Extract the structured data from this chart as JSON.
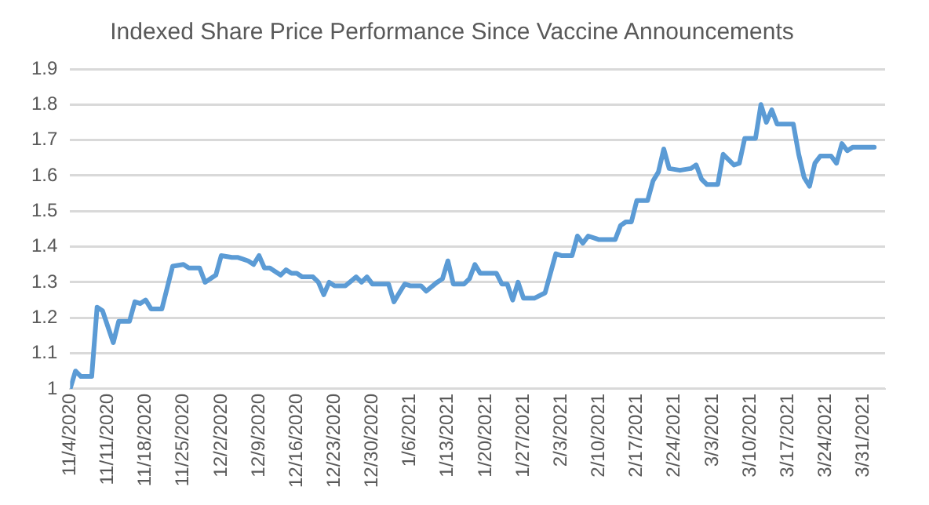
{
  "chart_data": {
    "type": "line",
    "title": "Indexed Share Price Performance Since Vaccine Announcements",
    "x": [
      "2020-11-04",
      "2020-11-05",
      "2020-11-06",
      "2020-11-08",
      "2020-11-09",
      "2020-11-10",
      "2020-11-12",
      "2020-11-13",
      "2020-11-15",
      "2020-11-16",
      "2020-11-17",
      "2020-11-18",
      "2020-11-19",
      "2020-11-21",
      "2020-11-23",
      "2020-11-25",
      "2020-11-26",
      "2020-11-28",
      "2020-11-29",
      "2020-12-01",
      "2020-12-02",
      "2020-12-04",
      "2020-12-05",
      "2020-12-06",
      "2020-12-07",
      "2020-12-08",
      "2020-12-09",
      "2020-12-10",
      "2020-12-11",
      "2020-12-13",
      "2020-12-14",
      "2020-12-15",
      "2020-12-16",
      "2020-12-17",
      "2020-12-19",
      "2020-12-20",
      "2020-12-21",
      "2020-12-22",
      "2020-12-23",
      "2020-12-25",
      "2020-12-27",
      "2020-12-28",
      "2020-12-29",
      "2020-12-30",
      "2021-01-02",
      "2021-01-03",
      "2021-01-05",
      "2021-01-06",
      "2021-01-08",
      "2021-01-09",
      "2021-01-11",
      "2021-01-12",
      "2021-01-13",
      "2021-01-14",
      "2021-01-16",
      "2021-01-17",
      "2021-01-18",
      "2021-01-19",
      "2021-01-22",
      "2021-01-23",
      "2021-01-24",
      "2021-01-25",
      "2021-01-26",
      "2021-01-27",
      "2021-01-29",
      "2021-01-31",
      "2021-02-02",
      "2021-02-03",
      "2021-02-05",
      "2021-02-06",
      "2021-02-07",
      "2021-02-08",
      "2021-02-10",
      "2021-02-13",
      "2021-02-14",
      "2021-02-15",
      "2021-02-16",
      "2021-02-17",
      "2021-02-19",
      "2021-02-20",
      "2021-02-21",
      "2021-02-22",
      "2021-02-23",
      "2021-02-25",
      "2021-02-27",
      "2021-02-28",
      "2021-03-01",
      "2021-03-02",
      "2021-03-04",
      "2021-03-05",
      "2021-03-06",
      "2021-03-07",
      "2021-03-08",
      "2021-03-09",
      "2021-03-11",
      "2021-03-12",
      "2021-03-13",
      "2021-03-14",
      "2021-03-15",
      "2021-03-18",
      "2021-03-19",
      "2021-03-20",
      "2021-03-21",
      "2021-03-22",
      "2021-03-23",
      "2021-03-25",
      "2021-03-26",
      "2021-03-27",
      "2021-03-28",
      "2021-03-29",
      "2021-04-02"
    ],
    "series": [
      {
        "color": "#5b9bd5",
        "values": [
          1.0,
          1.05,
          1.035,
          1.035,
          1.23,
          1.22,
          1.13,
          1.19,
          1.19,
          1.245,
          1.24,
          1.25,
          1.225,
          1.225,
          1.345,
          1.35,
          1.34,
          1.34,
          1.3,
          1.32,
          1.375,
          1.37,
          1.37,
          1.365,
          1.36,
          1.35,
          1.375,
          1.34,
          1.34,
          1.32,
          1.335,
          1.325,
          1.325,
          1.315,
          1.315,
          1.3,
          1.265,
          1.3,
          1.29,
          1.29,
          1.315,
          1.3,
          1.315,
          1.295,
          1.295,
          1.245,
          1.295,
          1.29,
          1.29,
          1.275,
          1.3,
          1.31,
          1.36,
          1.295,
          1.295,
          1.31,
          1.35,
          1.325,
          1.325,
          1.295,
          1.295,
          1.25,
          1.3,
          1.255,
          1.255,
          1.27,
          1.38,
          1.375,
          1.375,
          1.43,
          1.41,
          1.43,
          1.42,
          1.42,
          1.46,
          1.47,
          1.47,
          1.53,
          1.53,
          1.585,
          1.61,
          1.675,
          1.62,
          1.615,
          1.62,
          1.63,
          1.59,
          1.575,
          1.575,
          1.66,
          1.645,
          1.63,
          1.635,
          1.705,
          1.705,
          1.8,
          1.75,
          1.785,
          1.745,
          1.745,
          1.66,
          1.595,
          1.57,
          1.635,
          1.655,
          1.655,
          1.635,
          1.69,
          1.67,
          1.68,
          1.68
        ]
      }
    ],
    "xlim": [
      "2020-11-04",
      "2021-04-04"
    ],
    "xticks": [
      {
        "value": "2020-11-04",
        "label": "11/4/2020"
      },
      {
        "value": "2020-11-11",
        "label": "11/11/2020"
      },
      {
        "value": "2020-11-18",
        "label": "11/18/2020"
      },
      {
        "value": "2020-11-25",
        "label": "11/25/2020"
      },
      {
        "value": "2020-12-02",
        "label": "12/2/2020"
      },
      {
        "value": "2020-12-09",
        "label": "12/9/2020"
      },
      {
        "value": "2020-12-16",
        "label": "12/16/2020"
      },
      {
        "value": "2020-12-23",
        "label": "12/23/2020"
      },
      {
        "value": "2020-12-30",
        "label": "12/30/2020"
      },
      {
        "value": "2021-01-06",
        "label": "1/6/2021"
      },
      {
        "value": "2021-01-13",
        "label": "1/13/2021"
      },
      {
        "value": "2021-01-20",
        "label": "1/20/2021"
      },
      {
        "value": "2021-01-27",
        "label": "1/27/2021"
      },
      {
        "value": "2021-02-03",
        "label": "2/3/2021"
      },
      {
        "value": "2021-02-10",
        "label": "2/10/2021"
      },
      {
        "value": "2021-02-17",
        "label": "2/17/2021"
      },
      {
        "value": "2021-02-24",
        "label": "2/24/2021"
      },
      {
        "value": "2021-03-03",
        "label": "3/3/2021"
      },
      {
        "value": "2021-03-10",
        "label": "3/10/2021"
      },
      {
        "value": "2021-03-17",
        "label": "3/17/2021"
      },
      {
        "value": "2021-03-24",
        "label": "3/24/2021"
      },
      {
        "value": "2021-03-31",
        "label": "3/31/2021"
      }
    ],
    "ylim": [
      1,
      1.9
    ],
    "yticks": [
      1,
      1.1,
      1.2,
      1.3,
      1.4,
      1.5,
      1.6,
      1.7,
      1.8,
      1.9
    ],
    "grid": "y",
    "legend": false,
    "marker": "none",
    "line_style": "solid"
  }
}
